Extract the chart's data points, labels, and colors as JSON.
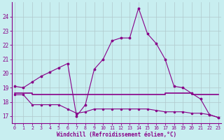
{
  "xlabel": "Windchill (Refroidissement éolien,°C)",
  "background_color": "#c8eef0",
  "grid_color": "#b0c8cc",
  "line_color": "#880088",
  "x_hours": [
    0,
    1,
    2,
    3,
    4,
    5,
    6,
    7,
    8,
    9,
    10,
    11,
    12,
    13,
    14,
    15,
    16,
    17,
    18,
    19,
    20,
    21,
    22,
    23
  ],
  "line1_y": [
    19.1,
    19.0,
    19.4,
    19.8,
    20.1,
    20.4,
    20.7,
    17.0,
    17.8,
    20.3,
    21.0,
    22.3,
    22.5,
    22.5,
    24.6,
    22.8,
    22.1,
    21.0,
    19.1,
    19.0,
    18.6,
    18.2,
    17.1,
    16.9
  ],
  "line2_y": [
    18.5,
    18.5,
    17.8,
    17.8,
    17.8,
    17.8,
    17.5,
    17.2,
    17.3,
    17.5,
    17.5,
    17.5,
    17.5,
    17.5,
    17.5,
    17.5,
    17.4,
    17.3,
    17.3,
    17.3,
    17.2,
    17.2,
    17.1,
    16.9
  ],
  "line3_y": [
    18.6,
    18.6,
    18.5,
    18.5,
    18.5,
    18.5,
    18.5,
    18.5,
    18.5,
    18.5,
    18.5,
    18.5,
    18.5,
    18.5,
    18.5,
    18.5,
    18.5,
    18.6,
    18.6,
    18.6,
    18.5,
    18.5,
    18.5,
    18.5
  ],
  "ylim": [
    16.5,
    25.0
  ],
  "yticks": [
    17,
    18,
    19,
    20,
    21,
    22,
    23,
    24
  ],
  "xticks": [
    0,
    1,
    2,
    3,
    4,
    5,
    6,
    7,
    8,
    9,
    10,
    11,
    12,
    13,
    14,
    15,
    16,
    17,
    18,
    19,
    20,
    21,
    22,
    23
  ]
}
